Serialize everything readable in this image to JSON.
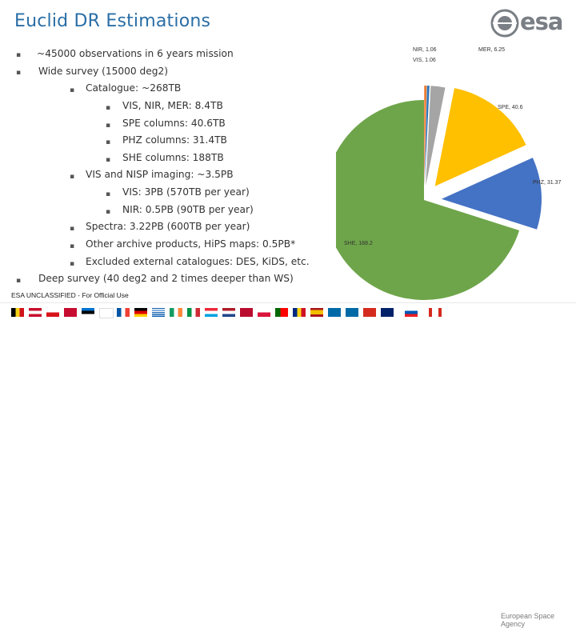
{
  "title": "Euclid DR Estimations",
  "logo_text": "esa",
  "bullets": [
    {
      "text": "~45000 observations in 6 years mission"
    },
    {
      "text": "Wide survey (15000 deg2)"
    },
    {
      "text": "Catalogue: ~268TB"
    },
    {
      "text": "VIS, NIR, MER: 8.4TB"
    },
    {
      "text": "SPE columns: 40.6TB"
    },
    {
      "text": "PHZ columns: 31.4TB"
    },
    {
      "text": "SHE columns: 188TB"
    },
    {
      "text": "VIS and NISP imaging: ~3.5PB"
    },
    {
      "text": "VIS: 3PB (570TB per year)"
    },
    {
      "text": "NIR: 0.5PB (90TB per year)"
    },
    {
      "text": "Spectra: 3.22PB (600TB per year)"
    },
    {
      "text": "Other archive products, HiPS maps: 0.5PB*"
    },
    {
      "text": "Excluded external catalogues: DES, KiDS, etc."
    },
    {
      "text": "Deep survey (40 deg2 and 2 times deeper than WS)"
    }
  ],
  "chart_data": {
    "type": "pie",
    "title": "",
    "slices": [
      {
        "label": "SHE, 188.2",
        "value": 188.2,
        "color": "#6ea54a"
      },
      {
        "label": "NIR, 1.06",
        "value": 1.06,
        "color": "#ee7d31"
      },
      {
        "label": "VIS, 1.06",
        "value": 1.06,
        "color": "#2f75b5"
      },
      {
        "label": "MER, 6.25",
        "value": 6.25,
        "color": "#a5a5a5"
      },
      {
        "label": "SPE, 40.6",
        "value": 40.6,
        "color": "#ffc000"
      },
      {
        "label": "PHZ, 31.37",
        "value": 31.37,
        "color": "#4472c4"
      }
    ]
  },
  "footer": {
    "classification": "ESA UNCLASSIFIED - For Official Use",
    "agency": "European Space Agency"
  }
}
